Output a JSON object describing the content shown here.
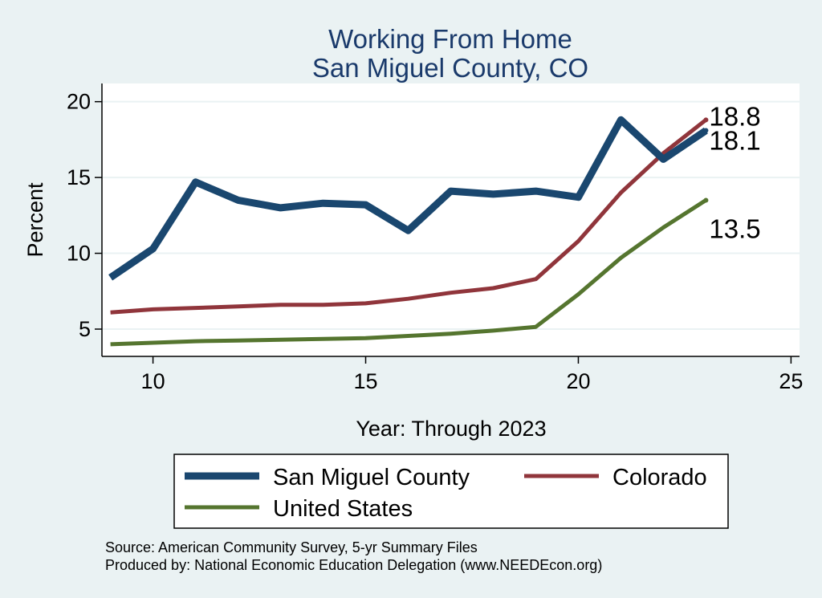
{
  "chart_data": {
    "type": "line",
    "title": [
      "Working From Home",
      "San Miguel County, CO"
    ],
    "xlabel": "Year: Through 2023",
    "ylabel": "Percent",
    "xlim": [
      8.8,
      25.2
    ],
    "ylim": [
      3.2,
      21.2
    ],
    "xticks": [
      10,
      15,
      20,
      25
    ],
    "yticks": [
      5,
      10,
      15,
      20
    ],
    "grid": true,
    "x": [
      9,
      10,
      11,
      12,
      13,
      14,
      15,
      16,
      17,
      18,
      19,
      20,
      21,
      22,
      23
    ],
    "series": [
      {
        "name": "San Miguel County",
        "color": "#1a476f",
        "values": [
          8.4,
          10.3,
          14.7,
          13.5,
          13.0,
          13.3,
          13.2,
          11.5,
          14.1,
          13.9,
          14.1,
          13.7,
          18.8,
          16.2,
          18.1
        ],
        "end_label": "18.1"
      },
      {
        "name": "Colorado",
        "color": "#90353b",
        "values": [
          6.1,
          6.3,
          6.4,
          6.5,
          6.6,
          6.6,
          6.7,
          7.0,
          7.4,
          7.7,
          8.3,
          10.8,
          14.0,
          16.6,
          18.8
        ],
        "end_label": "18.8"
      },
      {
        "name": "United States",
        "color": "#55752f",
        "values": [
          4.0,
          4.1,
          4.2,
          4.25,
          4.3,
          4.35,
          4.4,
          4.55,
          4.7,
          4.9,
          5.15,
          7.3,
          9.7,
          11.7,
          13.5
        ],
        "end_label": "13.5"
      }
    ],
    "legend_position": "bottom"
  },
  "source_lines": [
    "Source: American Community Survey, 5-yr Summary Files",
    "Produced by: National Economic Education Delegation (www.NEEDEcon.org)"
  ]
}
